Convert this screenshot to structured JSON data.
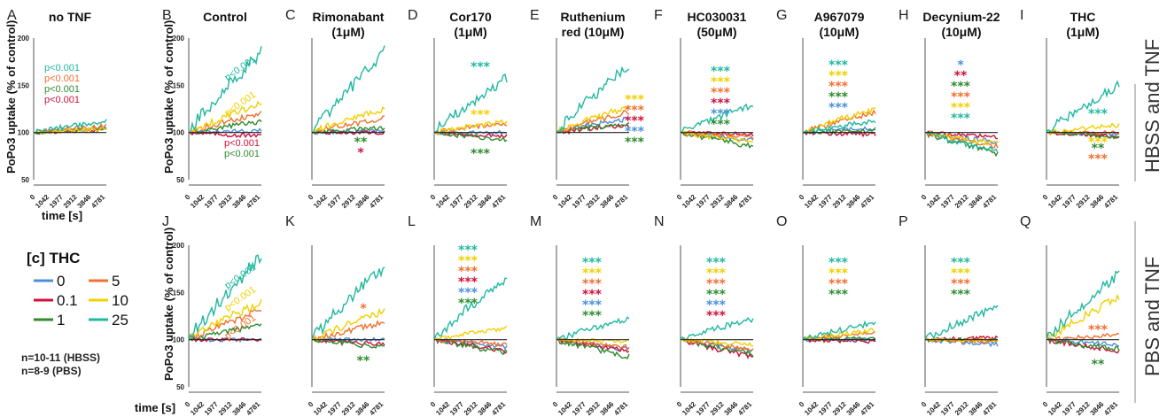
{
  "colors": {
    "0": "#4a90d9",
    "0.1": "#d0103a",
    "1": "#2e8b2e",
    "5": "#f07030",
    "10": "#f0d000",
    "25": "#20b8a0",
    "baseline": "#222222"
  },
  "series_order": [
    "0",
    "0.1",
    "1",
    "5",
    "10",
    "25"
  ],
  "shared": {
    "ylabel": "PoPo3 uptake (% of control)",
    "xlabel": "time [s]",
    "yticks": [
      "50",
      "100",
      "150",
      "200"
    ],
    "xticks": [
      "0",
      "1042",
      "1977",
      "2912",
      "3846",
      "4781"
    ]
  },
  "side_labels": {
    "top": "HBSS and TNF",
    "bottom": "PBS and TNF"
  },
  "legend": {
    "title": "[c] THC",
    "items": [
      {
        "key": "0",
        "label": "0"
      },
      {
        "key": "5",
        "label": "5"
      },
      {
        "key": "0.1",
        "label": "0.1"
      },
      {
        "key": "10",
        "label": "10"
      },
      {
        "key": "1",
        "label": "1"
      },
      {
        "key": "25",
        "label": "25"
      }
    ],
    "notes": [
      "n=10-11 (HBSS)",
      "n=8-9 (PBS)"
    ]
  },
  "chart_data": [
    {
      "letter": "A",
      "title": [
        "no TNF"
      ],
      "type": "line",
      "ylim": [
        50,
        200
      ],
      "end": {
        "0": 105,
        "0.1": 103,
        "1": 104,
        "5": 107,
        "10": 104,
        "25": 112
      },
      "labels": [
        {
          "text": "p<0.001",
          "color": "25"
        },
        {
          "text": "p<0.001",
          "color": "5"
        },
        {
          "text": "p<0.001",
          "color": "1"
        },
        {
          "text": "p<0.001",
          "color": "0.1"
        }
      ]
    },
    {
      "letter": "B",
      "title": [
        "Control"
      ],
      "type": "line",
      "ylim": [
        50,
        200
      ],
      "end": {
        "0": 102,
        "0.1": 96,
        "1": 112,
        "5": 120,
        "10": 130,
        "25": 185
      },
      "labels": [
        {
          "text": "p<0.001",
          "color": "25"
        },
        {
          "text": "p<0.001",
          "color": "10"
        },
        {
          "text": "p<0.001",
          "color": "0.1"
        },
        {
          "text": "p<0.001",
          "color": "1"
        }
      ]
    },
    {
      "letter": "C",
      "title": [
        "Rimonabant",
        "(1μM)"
      ],
      "type": "line",
      "ylim": [
        50,
        200
      ],
      "end": {
        "0": 102,
        "0.1": 100,
        "1": 105,
        "5": 115,
        "10": 125,
        "25": 185
      },
      "labels": [
        {
          "text": "**",
          "color": "1"
        },
        {
          "text": "*",
          "color": "0.1"
        }
      ]
    },
    {
      "letter": "D",
      "title": [
        "Cor170",
        "(1μM)"
      ],
      "type": "line",
      "ylim": [
        50,
        200
      ],
      "end": {
        "0": 100,
        "0.1": 96,
        "1": 92,
        "5": 110,
        "10": 112,
        "25": 158
      },
      "labels": [
        {
          "text": "***",
          "color": "25"
        },
        {
          "text": "***",
          "color": "10"
        },
        {
          "text": "***",
          "color": "1"
        }
      ]
    },
    {
      "letter": "E",
      "title": [
        "Ruthenium",
        "red (10μM)"
      ],
      "type": "line",
      "ylim": [
        50,
        200
      ],
      "end": {
        "0": 115,
        "0.1": 108,
        "1": 110,
        "5": 122,
        "10": 128,
        "25": 172
      },
      "labels": [
        {
          "text": "***",
          "color": "10"
        },
        {
          "text": "***",
          "color": "5"
        },
        {
          "text": "***",
          "color": "0.1"
        },
        {
          "text": "***",
          "color": "0"
        },
        {
          "text": "***",
          "color": "1"
        }
      ]
    },
    {
      "letter": "F",
      "title": [
        "HC030031",
        "(50μM)"
      ],
      "type": "line",
      "ylim": [
        50,
        200
      ],
      "end": {
        "0": 92,
        "0.1": 98,
        "1": 85,
        "5": 95,
        "10": 90,
        "25": 130
      },
      "labels": [
        {
          "text": "***",
          "color": "25"
        },
        {
          "text": "***",
          "color": "10"
        },
        {
          "text": "***",
          "color": "5"
        },
        {
          "text": "***",
          "color": "0.1"
        },
        {
          "text": "***",
          "color": "0"
        },
        {
          "text": "***",
          "color": "1"
        }
      ]
    },
    {
      "letter": "G",
      "title": [
        "A967079",
        "(10μM)"
      ],
      "type": "line",
      "ylim": [
        50,
        200
      ],
      "end": {
        "0": 105,
        "0.1": 98,
        "1": 102,
        "5": 122,
        "10": 125,
        "25": 112
      },
      "labels": [
        {
          "text": "***",
          "color": "25"
        },
        {
          "text": "***",
          "color": "10"
        },
        {
          "text": "***",
          "color": "5"
        },
        {
          "text": "***",
          "color": "1"
        },
        {
          "text": "***",
          "color": "0"
        }
      ]
    },
    {
      "letter": "H",
      "title": [
        "Decynium-22",
        "(10μM)"
      ],
      "type": "line",
      "ylim": [
        50,
        200
      ],
      "end": {
        "0": 90,
        "0.1": 95,
        "1": 78,
        "5": 85,
        "10": 88,
        "25": 80
      },
      "labels": [
        {
          "text": "*",
          "color": "0"
        },
        {
          "text": "**",
          "color": "0.1"
        },
        {
          "text": "***",
          "color": "1"
        },
        {
          "text": "***",
          "color": "5"
        },
        {
          "text": "***",
          "color": "10"
        },
        {
          "text": "***",
          "color": "25"
        }
      ]
    },
    {
      "letter": "I",
      "title": [
        "THC",
        "(1μM)"
      ],
      "type": "line",
      "ylim": [
        50,
        200
      ],
      "end": {
        "0": 98,
        "0.1": 96,
        "1": 95,
        "5": 100,
        "10": 108,
        "25": 150
      },
      "labels": [
        {
          "text": "***",
          "color": "25"
        },
        {
          "text": "***",
          "color": "10"
        },
        {
          "text": "**",
          "color": "1"
        },
        {
          "text": "***",
          "color": "5"
        }
      ]
    },
    {
      "letter": "J",
      "title": [],
      "type": "line",
      "ylim": [
        50,
        200
      ],
      "end": {
        "0": 100,
        "0.1": 100,
        "1": 115,
        "5": 132,
        "10": 140,
        "25": 188
      },
      "labels": [
        {
          "text": "p<0.001",
          "color": "25"
        },
        {
          "text": "p<0.001",
          "color": "10"
        },
        {
          "text": "p<0.001",
          "color": "5"
        }
      ]
    },
    {
      "letter": "K",
      "title": [],
      "type": "line",
      "ylim": [
        50,
        200
      ],
      "end": {
        "0": 100,
        "0.1": 95,
        "1": 92,
        "5": 118,
        "10": 130,
        "25": 178
      },
      "labels": [
        {
          "text": "*",
          "color": "5"
        },
        {
          "text": "**",
          "color": "1"
        }
      ]
    },
    {
      "letter": "L",
      "title": [],
      "type": "line",
      "ylim": [
        50,
        200
      ],
      "end": {
        "0": 92,
        "0.1": 88,
        "1": 86,
        "5": 95,
        "10": 112,
        "25": 165
      },
      "labels": [
        {
          "text": "***",
          "color": "25"
        },
        {
          "text": "***",
          "color": "10"
        },
        {
          "text": "***",
          "color": "5"
        },
        {
          "text": "***",
          "color": "0.1"
        },
        {
          "text": "***",
          "color": "0"
        },
        {
          "text": "***",
          "color": "1"
        }
      ]
    },
    {
      "letter": "M",
      "title": [],
      "type": "line",
      "ylim": [
        50,
        200
      ],
      "end": {
        "0": 90,
        "0.1": 88,
        "1": 82,
        "5": 92,
        "10": 98,
        "25": 122
      },
      "labels": [
        {
          "text": "***",
          "color": "25"
        },
        {
          "text": "***",
          "color": "10"
        },
        {
          "text": "***",
          "color": "5"
        },
        {
          "text": "***",
          "color": "0.1"
        },
        {
          "text": "***",
          "color": "0"
        },
        {
          "text": "***",
          "color": "1"
        }
      ]
    },
    {
      "letter": "N",
      "title": [],
      "type": "line",
      "ylim": [
        50,
        200
      ],
      "end": {
        "0": 88,
        "0.1": 82,
        "1": 85,
        "5": 90,
        "10": 95,
        "25": 122
      },
      "labels": [
        {
          "text": "***",
          "color": "25"
        },
        {
          "text": "***",
          "color": "10"
        },
        {
          "text": "***",
          "color": "5"
        },
        {
          "text": "***",
          "color": "1"
        },
        {
          "text": "***",
          "color": "0"
        },
        {
          "text": "***",
          "color": "0.1"
        }
      ]
    },
    {
      "letter": "O",
      "title": [],
      "type": "line",
      "ylim": [
        50,
        200
      ],
      "end": {
        "0": 100,
        "0.1": 98,
        "1": 102,
        "5": 108,
        "10": 110,
        "25": 118
      },
      "labels": [
        {
          "text": "***",
          "color": "25"
        },
        {
          "text": "***",
          "color": "10"
        },
        {
          "text": "***",
          "color": "5"
        },
        {
          "text": "***",
          "color": "1"
        }
      ]
    },
    {
      "letter": "P",
      "title": [],
      "type": "line",
      "ylim": [
        50,
        200
      ],
      "end": {
        "0": 95,
        "0.1": 102,
        "1": 100,
        "5": 98,
        "10": 100,
        "25": 135
      },
      "labels": [
        {
          "text": "***",
          "color": "25"
        },
        {
          "text": "***",
          "color": "10"
        },
        {
          "text": "***",
          "color": "5"
        },
        {
          "text": "***",
          "color": "1"
        }
      ]
    },
    {
      "letter": "Q",
      "title": [],
      "type": "line",
      "ylim": [
        50,
        200
      ],
      "end": {
        "0": 95,
        "0.1": 88,
        "1": 90,
        "5": 105,
        "10": 145,
        "25": 170
      },
      "labels": [
        {
          "text": "***",
          "color": "5"
        },
        {
          "text": "**",
          "color": "1"
        }
      ]
    }
  ]
}
